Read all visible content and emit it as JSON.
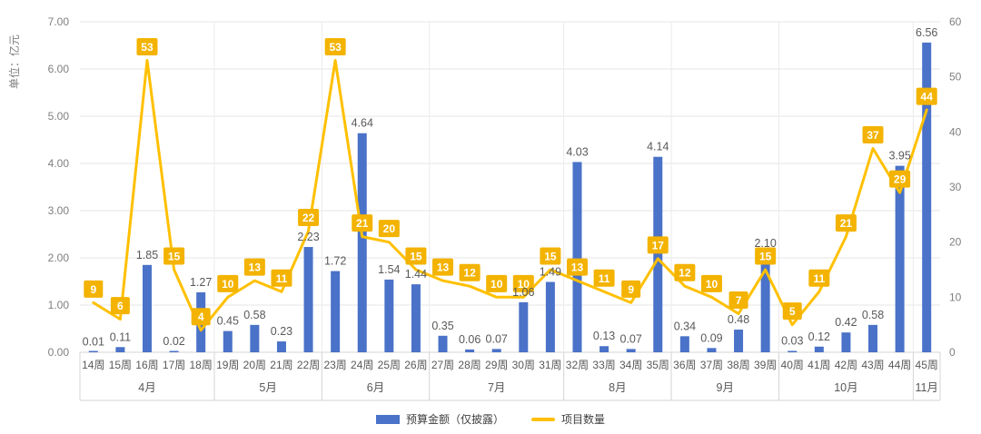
{
  "axis_title": "单位：亿元",
  "legend": {
    "bar_label": "预算金额（仅披露）",
    "line_label": "项目数量"
  },
  "colors": {
    "bar": "#4A72C8",
    "line": "#FFC000",
    "badge_bg": "#F3B300",
    "badge_text": "#FFFFFF",
    "grid": "#E6E6E6",
    "zero_line": "#CFCFCF",
    "band_border": "#D4D4D4",
    "month_divider": "#EBEBEB",
    "axis_text": "#7F7F7F",
    "label_text": "#595959"
  },
  "chart_data": {
    "type": "bar+line combo",
    "categories": [
      "14周",
      "15周",
      "16周",
      "17周",
      "18周",
      "19周",
      "20周",
      "21周",
      "22周",
      "23周",
      "24周",
      "25周",
      "26周",
      "27周",
      "28周",
      "29周",
      "30周",
      "31周",
      "32周",
      "33周",
      "34周",
      "35周",
      "36周",
      "37周",
      "38周",
      "39周",
      "40周",
      "41周",
      "42周",
      "43周",
      "44周",
      "45周"
    ],
    "month_groups": [
      {
        "label": "4月",
        "span": 5
      },
      {
        "label": "5月",
        "span": 4
      },
      {
        "label": "6月",
        "span": 4
      },
      {
        "label": "7月",
        "span": 5
      },
      {
        "label": "8月",
        "span": 4
      },
      {
        "label": "9月",
        "span": 4
      },
      {
        "label": "10月",
        "span": 5
      },
      {
        "label": "11月",
        "span": 1
      }
    ],
    "series": [
      {
        "name": "预算金额（仅披露）",
        "type": "bar",
        "axis": "left",
        "values": [
          0.01,
          0.11,
          1.85,
          0.02,
          1.27,
          0.45,
          0.58,
          0.23,
          2.23,
          1.72,
          4.64,
          1.54,
          1.44,
          0.35,
          0.06,
          0.07,
          1.06,
          1.49,
          4.03,
          0.13,
          0.07,
          4.14,
          0.34,
          0.09,
          0.48,
          2.1,
          0.03,
          0.12,
          0.42,
          0.58,
          3.95,
          6.56
        ]
      },
      {
        "name": "项目数量",
        "type": "line",
        "axis": "right",
        "values": [
          9,
          6,
          53,
          15,
          4,
          10,
          13,
          11,
          22,
          53,
          21,
          20,
          15,
          13,
          12,
          10,
          10,
          15,
          13,
          11,
          9,
          17,
          12,
          10,
          7,
          15,
          5,
          11,
          21,
          37,
          29,
          44
        ]
      }
    ],
    "left_axis": {
      "min": 0,
      "max": 7,
      "step": 1,
      "tick_format": "two_decimals",
      "title": "单位：亿元"
    },
    "right_axis": {
      "min": 0,
      "max": 60,
      "step": 10
    },
    "grid": true,
    "legend_position": "bottom"
  }
}
